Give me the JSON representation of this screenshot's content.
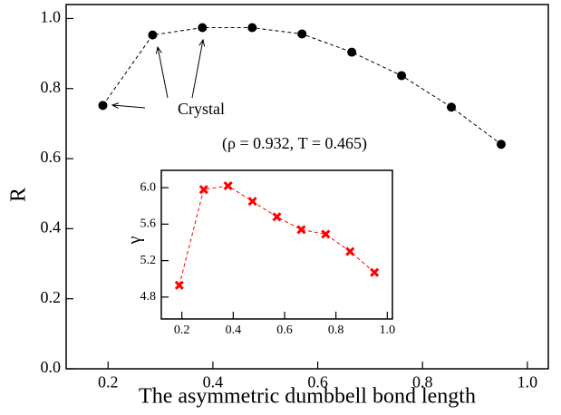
{
  "chart_data": [
    {
      "type": "line",
      "xlabel": "The asymmetric dumbbell bond length",
      "ylabel": "R",
      "x": [
        0.19,
        0.285,
        0.38,
        0.475,
        0.57,
        0.665,
        0.76,
        0.855,
        0.95
      ],
      "series": [
        {
          "color": "#000000",
          "marker": "circle",
          "linestyle": "dashed",
          "values": [
            0.752,
            0.953,
            0.974,
            0.974,
            0.956,
            0.904,
            0.837,
            0.747,
            0.641
          ]
        }
      ],
      "xlim": [
        0.12,
        1.04
      ],
      "ylim": [
        0,
        1.04
      ],
      "xticks": [
        0.2,
        0.4,
        0.6,
        0.8,
        {
          "value": 1,
          "label": "1.0"
        }
      ],
      "yticks": [
        {
          "value": 0,
          "label": "0.0"
        },
        0.2,
        0.4,
        0.6,
        0.8,
        {
          "value": 1,
          "label": "1.0"
        }
      ],
      "annotations": [
        "Crystal",
        "(ρ = 0.932, T = 0.465)"
      ]
    },
    {
      "type": "line",
      "ylabel": "γ",
      "x": [
        0.19,
        0.285,
        0.38,
        0.475,
        0.57,
        0.665,
        0.76,
        0.855,
        0.95
      ],
      "series": [
        {
          "color": "#ff0000",
          "marker": "cross",
          "linestyle": "dashed",
          "values": [
            4.93,
            5.98,
            6.02,
            5.85,
            5.68,
            5.54,
            5.49,
            5.3,
            5.07
          ]
        }
      ],
      "xlim": [
        0.12,
        1.02
      ],
      "ylim": [
        4.56,
        6.19
      ],
      "xticks": [
        0.2,
        0.4,
        0.6,
        0.8,
        {
          "value": 1,
          "label": "1.0"
        }
      ],
      "yticks": [
        4.8,
        5.2,
        5.6,
        {
          "value": 6,
          "label": "6.0"
        }
      ]
    }
  ]
}
